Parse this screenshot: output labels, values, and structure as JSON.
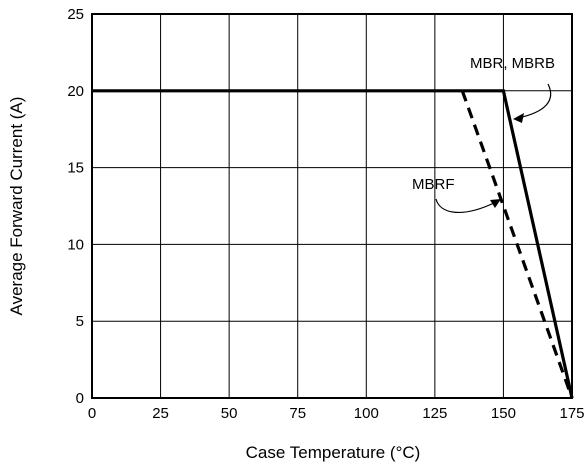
{
  "chart_data": {
    "type": "line",
    "title": "",
    "xlabel": "Case Temperature (°C)",
    "ylabel": "Average Forward Current (A)",
    "xlim": [
      0,
      175
    ],
    "ylim": [
      0,
      25
    ],
    "xticks": [
      0,
      25,
      50,
      75,
      100,
      125,
      150,
      175
    ],
    "yticks": [
      0,
      5,
      10,
      15,
      20,
      25
    ],
    "xtick_labels": [
      "0",
      "25",
      "50",
      "75",
      "100",
      "125",
      "150",
      "175"
    ],
    "ytick_labels": [
      "0",
      "5",
      "10",
      "15",
      "20",
      "25"
    ],
    "grid": true,
    "series": [
      {
        "name": "MBR, MBRB",
        "style": "solid",
        "color": "#000000",
        "points": [
          [
            0,
            20
          ],
          [
            150,
            20
          ],
          [
            175,
            0
          ]
        ]
      },
      {
        "name": "MBRF",
        "style": "dashed",
        "color": "#000000",
        "points": [
          [
            135,
            20
          ],
          [
            175,
            0
          ]
        ]
      }
    ],
    "annotations": [
      {
        "label": "MBR, MBRB",
        "target_series": 0
      },
      {
        "label": "MBRF",
        "target_series": 1
      }
    ]
  }
}
